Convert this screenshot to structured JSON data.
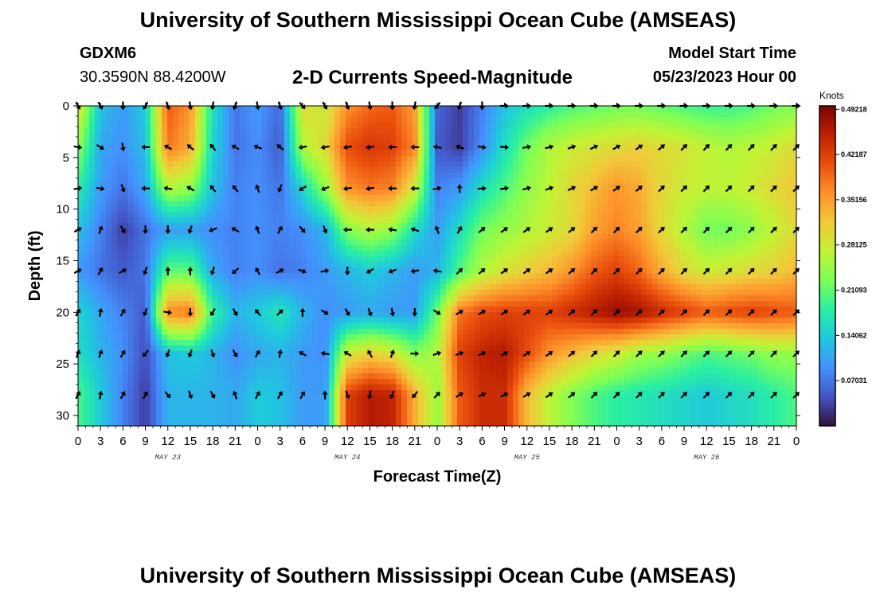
{
  "page": {
    "title": "University of Southern Mississippi Ocean Cube (AMSEAS)",
    "title_repeat": "University of Southern Mississippi Ocean Cube (AMSEAS)",
    "station_id": "GDXM6",
    "station_coords": "30.3590N  88.4200W",
    "subtitle": "2-D Currents Speed-Magnitude",
    "model_start_label": "Model Start Time",
    "model_start_value": "05/23/2023 Hour 00"
  },
  "chart_data": {
    "type": "heatmap",
    "title": "2-D Currents Speed-Magnitude",
    "xlabel": "Forecast Time(Z)",
    "ylabel": "Depth (ft)",
    "xlim": [
      0,
      96
    ],
    "ylim": [
      31,
      0
    ],
    "x_ticks": [
      0,
      3,
      6,
      9,
      12,
      15,
      18,
      21,
      24,
      27,
      30,
      33,
      36,
      39,
      42,
      45,
      48,
      51,
      54,
      57,
      60,
      63,
      66,
      69,
      72,
      75,
      78,
      81,
      84,
      87,
      90,
      93,
      96
    ],
    "x_tick_labels": [
      "0",
      "3",
      "6",
      "9",
      "12",
      "15",
      "18",
      "21",
      "0",
      "3",
      "6",
      "9",
      "12",
      "15",
      "18",
      "21",
      "0",
      "3",
      "6",
      "9",
      "12",
      "15",
      "18",
      "21",
      "0",
      "3",
      "6",
      "9",
      "12",
      "15",
      "18",
      "21",
      "0"
    ],
    "day_labels": [
      {
        "text": "MAY 23",
        "hour": 12
      },
      {
        "text": "MAY 24",
        "hour": 36
      },
      {
        "text": "MAY 25",
        "hour": 60
      },
      {
        "text": "MAY 26",
        "hour": 84
      }
    ],
    "y_ticks": [
      0,
      5,
      10,
      15,
      20,
      25,
      30
    ],
    "y_tick_labels": [
      "0",
      "5",
      "10",
      "15",
      "20",
      "25",
      "30"
    ],
    "depths_ft": [
      0,
      4,
      8,
      12,
      16,
      20,
      24,
      28
    ],
    "hours": [
      0,
      3,
      6,
      9,
      12,
      15,
      18,
      21,
      24,
      27,
      30,
      33,
      36,
      39,
      42,
      45,
      48,
      51,
      54,
      57,
      60,
      63,
      66,
      69,
      72,
      75,
      78,
      81,
      84,
      87,
      90,
      93,
      96
    ],
    "speed_knots": [
      [
        0.3,
        0.13,
        0.1,
        0.14,
        0.4,
        0.36,
        0.16,
        0.07,
        0.1,
        0.06,
        0.3,
        0.28,
        0.36,
        0.39,
        0.4,
        0.35,
        0.06,
        0.03,
        0.08,
        0.13,
        0.16,
        0.18,
        0.2,
        0.21,
        0.22,
        0.22,
        0.21,
        0.2,
        0.19,
        0.19,
        0.2,
        0.22,
        0.23
      ],
      [
        0.24,
        0.11,
        0.09,
        0.13,
        0.38,
        0.34,
        0.15,
        0.07,
        0.09,
        0.05,
        0.26,
        0.3,
        0.41,
        0.43,
        0.42,
        0.37,
        0.05,
        0.03,
        0.09,
        0.16,
        0.22,
        0.26,
        0.28,
        0.29,
        0.3,
        0.31,
        0.3,
        0.29,
        0.27,
        0.26,
        0.27,
        0.28,
        0.3
      ],
      [
        0.18,
        0.1,
        0.07,
        0.11,
        0.26,
        0.24,
        0.13,
        0.08,
        0.09,
        0.07,
        0.15,
        0.24,
        0.36,
        0.38,
        0.37,
        0.28,
        0.08,
        0.1,
        0.16,
        0.2,
        0.24,
        0.27,
        0.3,
        0.33,
        0.36,
        0.34,
        0.3,
        0.28,
        0.27,
        0.27,
        0.28,
        0.3,
        0.32
      ],
      [
        0.13,
        0.08,
        0.03,
        0.07,
        0.1,
        0.1,
        0.09,
        0.08,
        0.09,
        0.08,
        0.09,
        0.12,
        0.23,
        0.26,
        0.24,
        0.16,
        0.1,
        0.16,
        0.22,
        0.24,
        0.26,
        0.28,
        0.3,
        0.35,
        0.37,
        0.35,
        0.3,
        0.26,
        0.22,
        0.22,
        0.24,
        0.27,
        0.3
      ],
      [
        0.1,
        0.07,
        0.05,
        0.07,
        0.21,
        0.21,
        0.11,
        0.08,
        0.09,
        0.07,
        0.08,
        0.1,
        0.12,
        0.14,
        0.12,
        0.1,
        0.12,
        0.2,
        0.26,
        0.29,
        0.31,
        0.33,
        0.36,
        0.4,
        0.42,
        0.39,
        0.34,
        0.3,
        0.28,
        0.29,
        0.3,
        0.31,
        0.33
      ],
      [
        0.15,
        0.11,
        0.08,
        0.05,
        0.37,
        0.38,
        0.19,
        0.12,
        0.14,
        0.17,
        0.12,
        0.09,
        0.1,
        0.11,
        0.1,
        0.1,
        0.22,
        0.38,
        0.41,
        0.42,
        0.42,
        0.42,
        0.44,
        0.46,
        0.48,
        0.47,
        0.44,
        0.42,
        0.4,
        0.41,
        0.42,
        0.41,
        0.4
      ],
      [
        0.16,
        0.12,
        0.09,
        0.04,
        0.13,
        0.14,
        0.12,
        0.09,
        0.11,
        0.12,
        0.1,
        0.09,
        0.28,
        0.31,
        0.29,
        0.23,
        0.26,
        0.42,
        0.45,
        0.46,
        0.41,
        0.36,
        0.33,
        0.3,
        0.28,
        0.25,
        0.24,
        0.22,
        0.2,
        0.21,
        0.22,
        0.24,
        0.24
      ],
      [
        0.2,
        0.14,
        0.08,
        0.03,
        0.12,
        0.12,
        0.12,
        0.11,
        0.14,
        0.13,
        0.1,
        0.1,
        0.42,
        0.46,
        0.45,
        0.34,
        0.24,
        0.4,
        0.44,
        0.44,
        0.33,
        0.27,
        0.23,
        0.2,
        0.18,
        0.17,
        0.16,
        0.15,
        0.14,
        0.15,
        0.16,
        0.18,
        0.2
      ]
    ],
    "direction_deg": [
      [
        150,
        150,
        180,
        210,
        160,
        170,
        190,
        200,
        170,
        160,
        140,
        150,
        160,
        170,
        180,
        190,
        220,
        200,
        180,
        90,
        90,
        90,
        90,
        90,
        90,
        90,
        90,
        90,
        90,
        90,
        90,
        90,
        90
      ],
      [
        100,
        120,
        170,
        270,
        300,
        310,
        320,
        300,
        290,
        310,
        260,
        260,
        260,
        260,
        270,
        270,
        280,
        290,
        100,
        95,
        80,
        75,
        70,
        65,
        60,
        55,
        50,
        45,
        45,
        45,
        45,
        45,
        45
      ],
      [
        80,
        100,
        160,
        270,
        280,
        300,
        320,
        320,
        340,
        200,
        240,
        250,
        260,
        260,
        270,
        270,
        80,
        0,
        85,
        80,
        75,
        70,
        65,
        60,
        55,
        50,
        45,
        45,
        45,
        45,
        45,
        45,
        45
      ],
      [
        60,
        20,
        150,
        180,
        180,
        200,
        250,
        300,
        340,
        30,
        140,
        160,
        270,
        270,
        280,
        290,
        340,
        30,
        50,
        55,
        55,
        55,
        50,
        45,
        45,
        45,
        45,
        45,
        45,
        45,
        45,
        45,
        45
      ],
      [
        60,
        30,
        60,
        200,
        0,
        0,
        200,
        230,
        330,
        60,
        110,
        80,
        180,
        240,
        250,
        260,
        280,
        45,
        50,
        55,
        55,
        55,
        50,
        45,
        45,
        45,
        45,
        45,
        45,
        45,
        45,
        45,
        45
      ],
      [
        30,
        10,
        30,
        200,
        100,
        180,
        210,
        150,
        320,
        45,
        0,
        120,
        150,
        160,
        170,
        180,
        120,
        60,
        60,
        55,
        55,
        55,
        50,
        45,
        45,
        45,
        45,
        45,
        45,
        45,
        45,
        45,
        45
      ],
      [
        20,
        20,
        30,
        220,
        200,
        200,
        160,
        150,
        30,
        10,
        300,
        280,
        300,
        330,
        20,
        90,
        70,
        70,
        65,
        60,
        55,
        55,
        50,
        45,
        45,
        45,
        45,
        45,
        45,
        45,
        45,
        45,
        45
      ],
      [
        30,
        10,
        30,
        30,
        140,
        160,
        150,
        340,
        30,
        30,
        30,
        0,
        160,
        190,
        200,
        220,
        45,
        60,
        65,
        65,
        60,
        55,
        50,
        45,
        45,
        45,
        45,
        45,
        45,
        45,
        45,
        45,
        45
      ]
    ],
    "colorbar": {
      "unit": "Knots",
      "min": 0.0,
      "max": 0.4975,
      "tick_values": [
        0.07031,
        0.14062,
        0.21093,
        0.28125,
        0.35156,
        0.42187,
        0.49218
      ],
      "tick_labels": [
        "0.07031",
        "0.14062",
        "0.21093",
        "0.28125",
        "0.35156",
        "0.42187",
        "0.49218"
      ],
      "colormap": [
        "#30123b",
        "#4454c4",
        "#4490fe",
        "#1fc8de",
        "#29efa2",
        "#7dff56",
        "#c1f334",
        "#f1ca3a",
        "#fe922a",
        "#ea4f0d",
        "#be2102",
        "#7a0403"
      ]
    }
  }
}
